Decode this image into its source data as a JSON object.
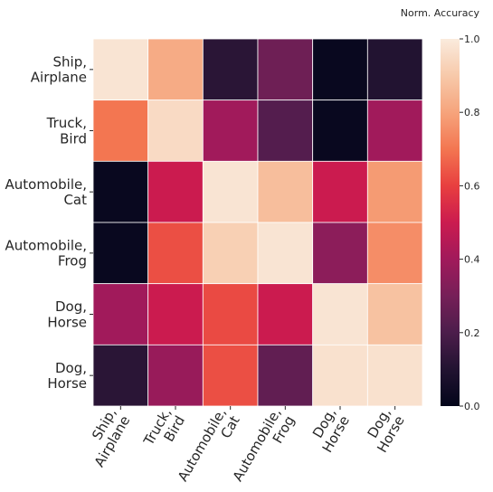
{
  "chart_data": {
    "type": "heatmap",
    "colorbar_label": "Norm. Accuracy",
    "x_categories": [
      "Ship,\nAirplane",
      "Truck,\nBird",
      "Automobile,\nCat",
      "Automobile,\nFrog",
      "Dog,\nHorse",
      "Dog,\nHorse"
    ],
    "y_categories": [
      "Ship,\nAirplane",
      "Truck,\nBird",
      "Automobile,\nCat",
      "Automobile,\nFrog",
      "Dog,\nHorse",
      "Dog,\nHorse"
    ],
    "values": [
      [
        0.98,
        0.82,
        0.12,
        0.28,
        0.02,
        0.1
      ],
      [
        0.7,
        0.95,
        0.4,
        0.22,
        0.02,
        0.4
      ],
      [
        0.02,
        0.5,
        0.98,
        0.87,
        0.5,
        0.78
      ],
      [
        0.02,
        0.63,
        0.92,
        0.98,
        0.35,
        0.75
      ],
      [
        0.4,
        0.5,
        0.62,
        0.5,
        0.98,
        0.88
      ],
      [
        0.12,
        0.38,
        0.63,
        0.25,
        0.97,
        0.97
      ]
    ],
    "colormap": [
      "#03051a",
      "#221331",
      "#4c1d4b",
      "#761f58",
      "#a11a5b",
      "#cb1b4f",
      "#e83f3f",
      "#f37651",
      "#f6a47c",
      "#f7c9aa",
      "#faebdd"
    ],
    "clim": [
      0,
      1
    ],
    "cticks": [
      {
        "value": 0,
        "label": "0.0"
      },
      {
        "value": 0.2,
        "label": "0.2"
      },
      {
        "value": 0.4,
        "label": "0.4"
      },
      {
        "value": 0.6,
        "label": "0.6"
      },
      {
        "value": 0.8,
        "label": "0.8"
      },
      {
        "value": 1,
        "label": "1.0"
      }
    ]
  }
}
